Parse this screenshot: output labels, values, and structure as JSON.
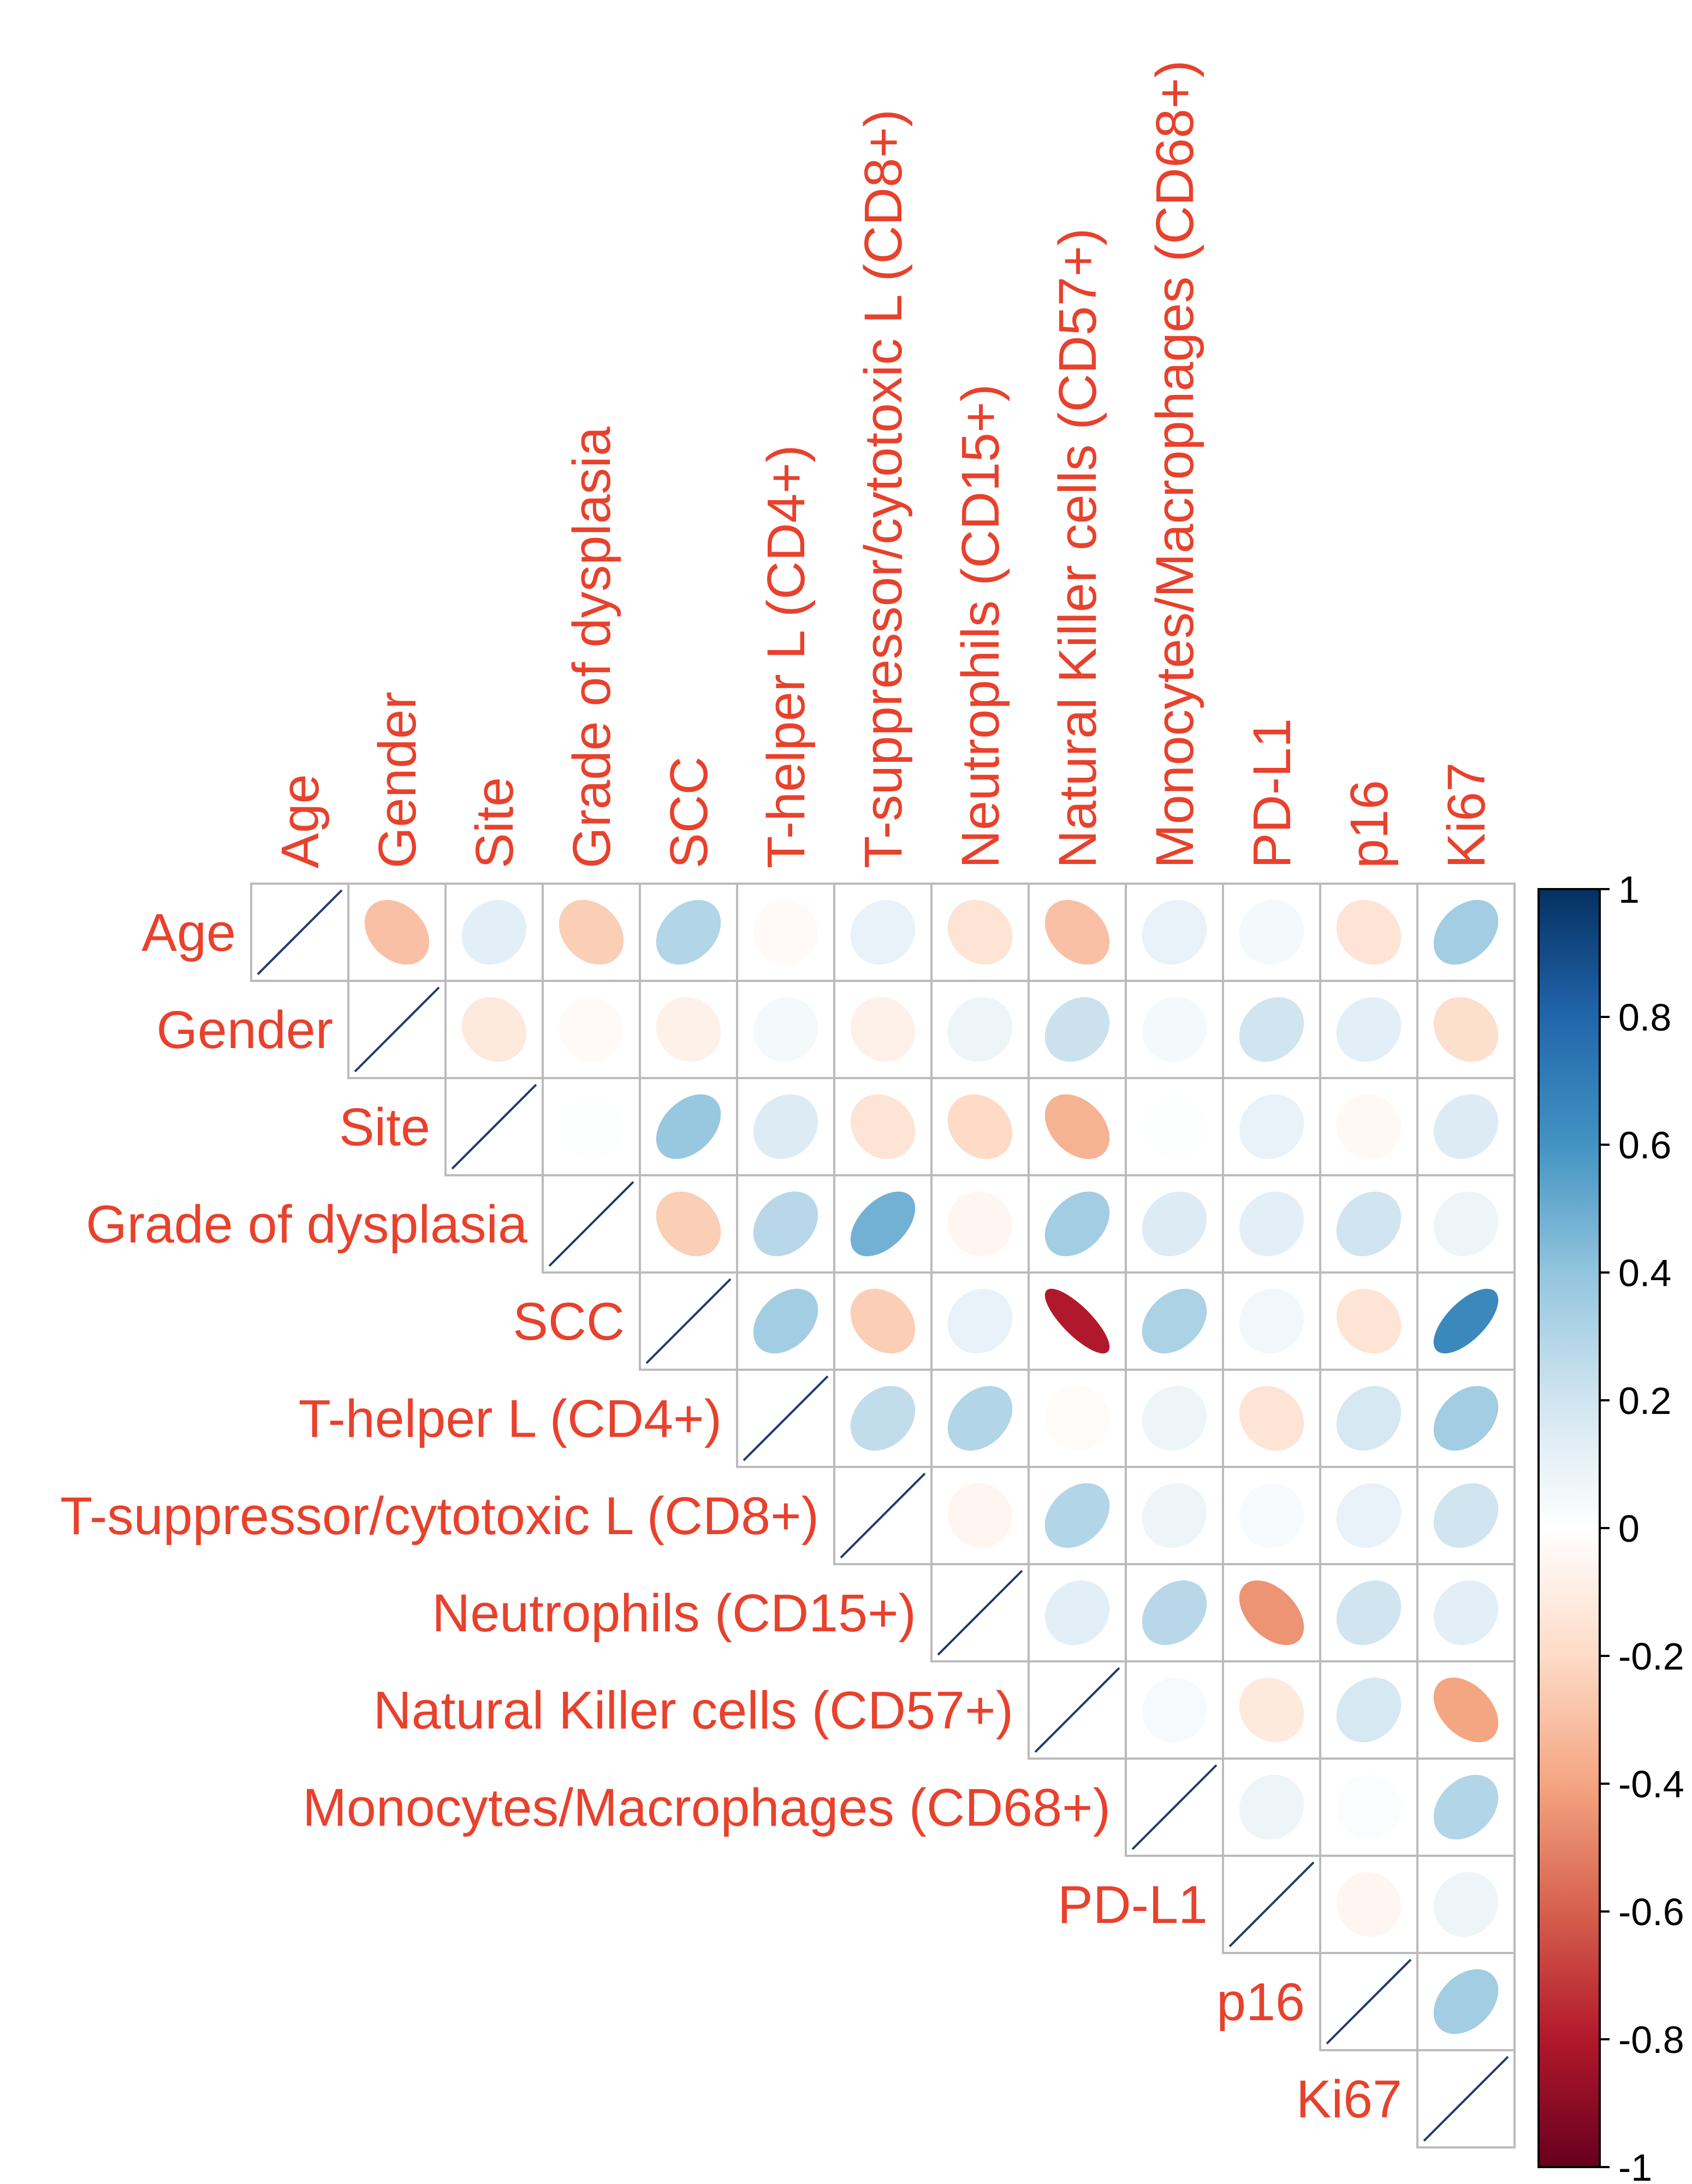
{
  "chart_data": {
    "type": "heatmap",
    "style": "corrplot-ellipse-upper",
    "variables": [
      "Age",
      "Gender",
      "Site",
      "Grade of dysplasia",
      "SCC",
      "T-helper L (CD4+)",
      "T-suppressor/cytotoxic L (CD8+)",
      "Neutrophils (CD15+)",
      "Natural Killer cells (CD57+)",
      "Monocytes/Macrophages (CD68+)",
      "PD-L1",
      "p16",
      "Ki67"
    ],
    "matrix": [
      [
        1,
        -0.3,
        0.12,
        -0.25,
        0.3,
        -0.03,
        0.1,
        -0.15,
        -0.3,
        0.1,
        0.05,
        -0.15,
        0.35
      ],
      [
        -0.3,
        1,
        -0.12,
        -0.03,
        -0.08,
        0.05,
        -0.08,
        0.08,
        0.22,
        0.05,
        0.2,
        0.12,
        -0.18
      ],
      [
        0.12,
        -0.12,
        1,
        0.01,
        0.38,
        0.15,
        -0.15,
        -0.2,
        -0.35,
        0.01,
        0.1,
        -0.04,
        0.15
      ],
      [
        -0.25,
        -0.03,
        0.01,
        1,
        -0.25,
        0.28,
        0.48,
        -0.05,
        0.35,
        0.15,
        0.12,
        0.2,
        0.08
      ],
      [
        0.3,
        -0.08,
        0.38,
        -0.25,
        1,
        0.35,
        -0.25,
        0.1,
        -0.8,
        0.32,
        0.06,
        -0.15,
        0.65
      ],
      [
        -0.03,
        0.05,
        0.15,
        0.28,
        0.35,
        1,
        0.25,
        0.3,
        -0.02,
        0.08,
        -0.15,
        0.18,
        0.35
      ],
      [
        0.1,
        -0.08,
        -0.15,
        0.48,
        -0.25,
        0.25,
        1,
        -0.05,
        0.3,
        0.08,
        0.03,
        0.1,
        0.2
      ],
      [
        -0.15,
        0.08,
        -0.2,
        -0.05,
        0.1,
        0.3,
        -0.05,
        1,
        0.12,
        0.28,
        -0.45,
        0.2,
        0.12
      ],
      [
        -0.3,
        0.22,
        -0.35,
        0.35,
        -0.8,
        -0.02,
        0.3,
        0.12,
        1,
        0.04,
        -0.12,
        0.18,
        -0.4
      ],
      [
        0.1,
        0.05,
        0.01,
        0.15,
        0.32,
        0.08,
        0.08,
        0.28,
        0.04,
        1,
        0.08,
        0.02,
        0.3
      ],
      [
        0.05,
        0.2,
        0.1,
        0.12,
        0.06,
        -0.15,
        0.03,
        -0.45,
        -0.12,
        0.08,
        1,
        -0.05,
        0.08
      ],
      [
        -0.15,
        0.12,
        -0.04,
        0.2,
        -0.15,
        0.18,
        0.1,
        0.2,
        0.18,
        0.02,
        -0.05,
        1,
        0.35
      ],
      [
        0.35,
        -0.18,
        0.15,
        0.08,
        0.65,
        0.35,
        0.2,
        0.12,
        -0.4,
        0.3,
        0.08,
        0.35,
        1
      ]
    ],
    "colorbar": {
      "range": [
        -1,
        1
      ],
      "ticks": [
        1,
        0.8,
        0.6,
        0.4,
        0.2,
        0,
        -0.2,
        -0.4,
        -0.6,
        -0.8,
        -1
      ],
      "tick_labels": [
        "1",
        "0.8",
        "0.6",
        "0.4",
        "0.2",
        "0",
        "-0.2",
        "-0.4",
        "-0.6",
        "-0.8",
        "-1"
      ],
      "colors_low_to_high": [
        "#67001F",
        "#B2182B",
        "#D6604D",
        "#F4A582",
        "#FDDBC7",
        "#FFFFFF",
        "#D1E5F0",
        "#92C5DE",
        "#4393C3",
        "#2166AC",
        "#053061"
      ]
    },
    "label_color": "#E8412C",
    "grid_color": "#BBBBBB",
    "diagonal_color": "#1F3B70"
  }
}
